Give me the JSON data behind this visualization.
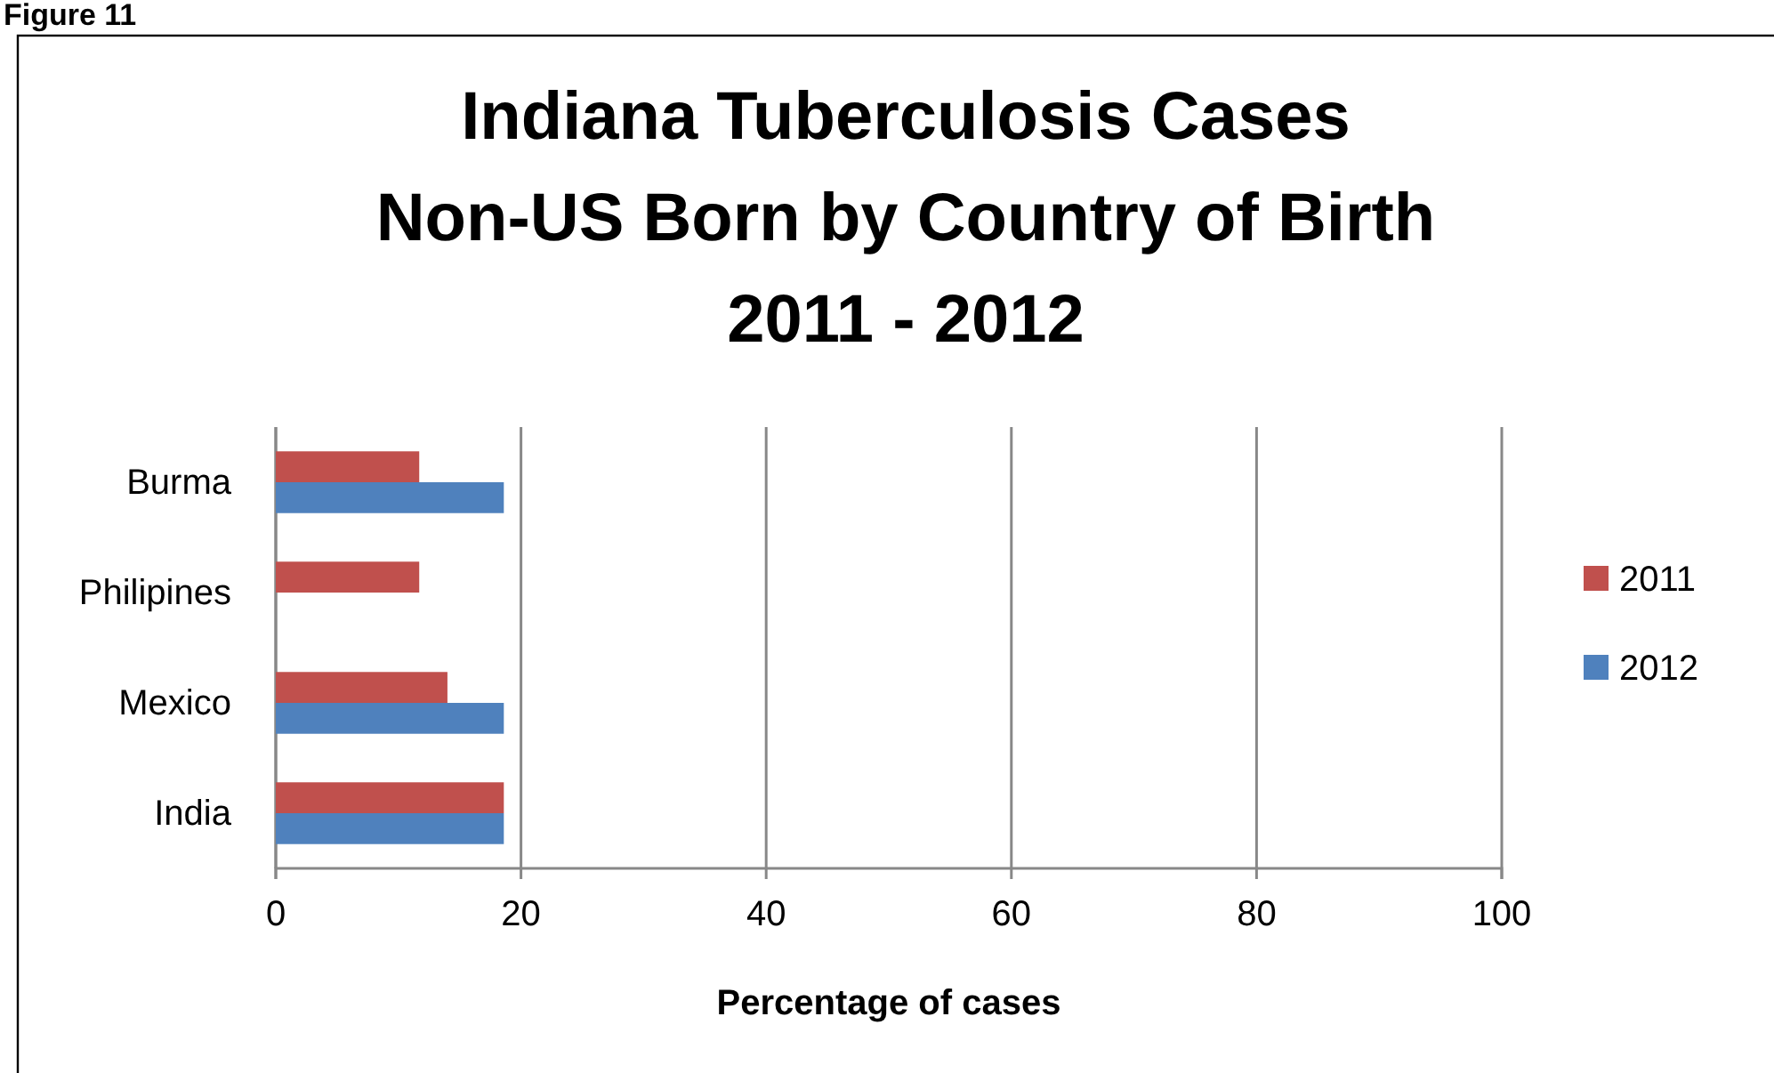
{
  "chart_data": {
    "type": "bar",
    "orientation": "horizontal",
    "title": "Indiana Tuberculosis Cases\nNon-US Born by Country of Birth\n2011 - 2012",
    "xlabel": "Percentage of cases",
    "annotations": [
      "Figure 11"
    ],
    "categories": [
      "Burma",
      "Philipines",
      "Mexico",
      "India"
    ],
    "series": [
      {
        "name": "2011",
        "color": "#c0504d",
        "values": [
          11.7,
          11.7,
          14.0,
          18.6
        ]
      },
      {
        "name": "2012",
        "color": "#4f81bd",
        "values": [
          18.6,
          null,
          18.6,
          18.6
        ]
      }
    ],
    "xlim": [
      0,
      100
    ],
    "xticks": [
      0,
      20,
      40,
      60,
      80,
      100
    ],
    "grid": "x",
    "legend": "right"
  }
}
